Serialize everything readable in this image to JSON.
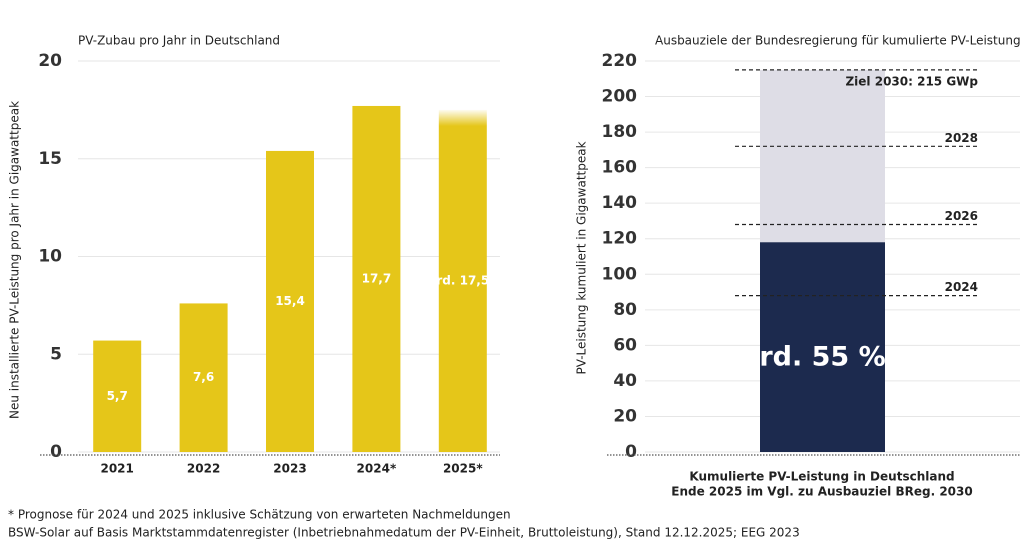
{
  "chart_data": [
    {
      "type": "bar",
      "title": "PV-Zubau pro Jahr in Deutschland",
      "y_label": "Neu installierte PV-Leistung pro Jahr in Gigawattpeak",
      "categories": [
        "2021",
        "2022",
        "2023",
        "2024*",
        "2025*"
      ],
      "values": [
        5.7,
        7.6,
        15.4,
        17.7,
        17.5
      ],
      "value_labels": [
        "5,7",
        "7,6",
        "15,4",
        "17,7",
        "rd. 17,5"
      ],
      "color": "#e5c619",
      "ylim": [
        0,
        20
      ],
      "yticks": [
        0,
        5,
        10,
        15,
        20
      ],
      "grid": true
    },
    {
      "type": "progress",
      "title": "Ausbauziele der Bundesregierung für kumulierte PV-Leistung",
      "y_label": "PV-Leistung kumuliert in Gigawattpeak",
      "x_label": [
        "Kumulierte PV-Leistung in Deutschland",
        "Ende 2025 im Vgl. zu Ausbauziel BReg. 2030"
      ],
      "ylim": [
        0,
        220
      ],
      "yticks": [
        0,
        20,
        40,
        60,
        80,
        100,
        120,
        140,
        160,
        180,
        200,
        220
      ],
      "grid": true,
      "target": {
        "value": 215,
        "color": "#dedde6"
      },
      "actual": {
        "value": 118,
        "color": "#1c2a4e",
        "value_label": "rd. 55 %"
      },
      "references": [
        {
          "value": 215,
          "label": "Ziel 2030: 215 GWp"
        },
        {
          "value": 172,
          "label": "2028"
        },
        {
          "value": 128,
          "label": "2026"
        },
        {
          "value": 88,
          "label": "2024"
        }
      ]
    }
  ],
  "footnotes": [
    "* Prognose für 2024 und 2025 inklusive Schätzung von erwarteten Nachmeldungen",
    "BSW-Solar auf Basis Marktstammdatenregister (Inbetriebnahmedatum der PV-Einheit, Bruttoleistung), Stand 12.12.2025; EEG 2023"
  ]
}
